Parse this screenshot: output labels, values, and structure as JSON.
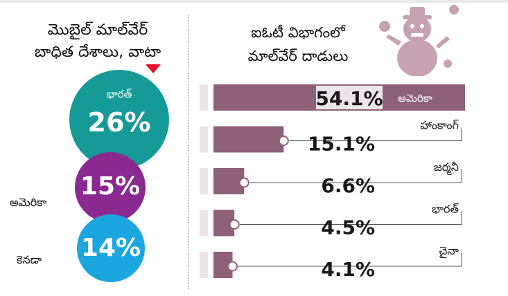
{
  "left_panel": {
    "title_line1": "మొబైల్ మాల్‌వేర్",
    "title_line2": "బాధిత దేశాలు, వాటా",
    "bubbles": [
      {
        "country": "భారత్",
        "value": "26%"
      },
      {
        "country": "అమెరికా",
        "value": "15%"
      },
      {
        "country": "కెనడా",
        "value": "14%"
      }
    ],
    "colors": {
      "india": "#159a98",
      "usa": "#8a2a90",
      "canada": "#1ba6e0",
      "marker": "#e4102b"
    }
  },
  "right_panel": {
    "title_line1": "ఐఓటీ విభాగంలో",
    "title_line2": "మాల్‌వేర్ దాడులు",
    "mascot_icon": "snowman-bug-icon"
  },
  "chart_data": {
    "type": "bar",
    "orientation": "horizontal",
    "categories": [
      "అమెరికా",
      "హాంకాంగ్",
      "జర్మనీ",
      "భారత్",
      "చైనా"
    ],
    "values": [
      54.1,
      15.1,
      6.6,
      4.5,
      4.1
    ],
    "value_labels": [
      "54.1%",
      "15.1%",
      "6.6%",
      "4.5%",
      "4.1%"
    ],
    "xlim": [
      0,
      54.1
    ],
    "bar_color": "#8e6179",
    "track_color": "#ece4e8"
  }
}
